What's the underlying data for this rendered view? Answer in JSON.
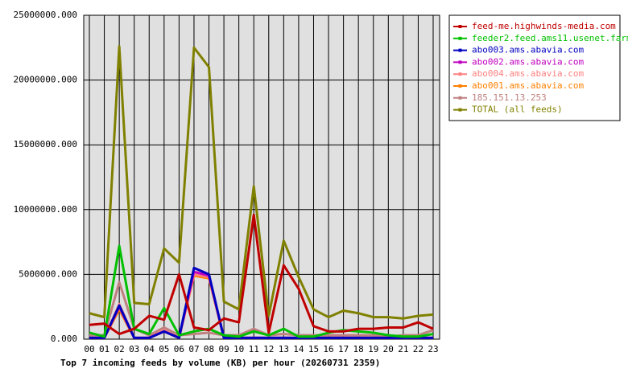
{
  "chart_data": {
    "type": "line",
    "title": "Top 7 incoming feeds by volume (KB) per hour (20260731 2359)",
    "categories": [
      "00",
      "01",
      "02",
      "03",
      "04",
      "05",
      "06",
      "07",
      "08",
      "09",
      "10",
      "11",
      "12",
      "13",
      "14",
      "15",
      "16",
      "17",
      "18",
      "19",
      "20",
      "21",
      "22",
      "23"
    ],
    "ylim": [
      0,
      25000000
    ],
    "yticks": [
      {
        "value": 0,
        "label": "0.000"
      },
      {
        "value": 5000000,
        "label": "5000000.000"
      },
      {
        "value": 10000000,
        "label": "10000000.000"
      },
      {
        "value": 15000000,
        "label": "15000000.000"
      },
      {
        "value": 20000000,
        "label": "20000000.000"
      },
      {
        "value": 25000000,
        "label": "25000000.000"
      }
    ],
    "grid": true,
    "legend": "right",
    "series": [
      {
        "name": "feed-me.highwinds-media.com",
        "color": "#c00000",
        "values": [
          1100000,
          1200000,
          400000,
          800000,
          1800000,
          1500000,
          5000000,
          900000,
          700000,
          1600000,
          1300000,
          9600000,
          500000,
          5700000,
          3900000,
          1000000,
          600000,
          600000,
          800000,
          800000,
          900000,
          900000,
          1300000,
          800000
        ]
      },
      {
        "name": "feeder2.feed.ams11.usenet.farm",
        "color": "#00c000",
        "values": [
          500000,
          200000,
          7200000,
          800000,
          400000,
          2400000,
          300000,
          600000,
          800000,
          300000,
          200000,
          600000,
          300000,
          800000,
          200000,
          200000,
          500000,
          700000,
          600000,
          500000,
          300000,
          200000,
          200000,
          400000
        ]
      },
      {
        "name": "abo003.ams.abavia.com",
        "color": "#0000c0",
        "values": [
          100000,
          100000,
          2600000,
          100000,
          100000,
          600000,
          100000,
          5500000,
          5000000,
          100000,
          100000,
          100000,
          100000,
          100000,
          100000,
          100000,
          100000,
          100000,
          100000,
          100000,
          100000,
          100000,
          100000,
          100000
        ]
      },
      {
        "name": "abo002.ams.abavia.com",
        "color": "#c000c0",
        "values": [
          100000,
          100000,
          2500000,
          100000,
          100000,
          600000,
          100000,
          5200000,
          4900000,
          100000,
          100000,
          100000,
          100000,
          100000,
          100000,
          100000,
          100000,
          100000,
          100000,
          100000,
          100000,
          100000,
          100000,
          100000
        ]
      },
      {
        "name": "abo004.ams.abavia.com",
        "color": "#ff8080",
        "values": [
          100000,
          100000,
          2700000,
          100000,
          100000,
          700000,
          100000,
          5000000,
          4800000,
          100000,
          100000,
          100000,
          100000,
          100000,
          100000,
          100000,
          100000,
          100000,
          100000,
          100000,
          100000,
          100000,
          100000,
          100000
        ]
      },
      {
        "name": "abo001.ams.abavia.com",
        "color": "#ff8000",
        "values": [
          100000,
          100000,
          2300000,
          100000,
          100000,
          600000,
          100000,
          4900000,
          4700000,
          100000,
          100000,
          100000,
          100000,
          100000,
          100000,
          100000,
          100000,
          100000,
          100000,
          100000,
          100000,
          100000,
          100000,
          100000
        ]
      },
      {
        "name": "185.151.13.253",
        "color": "#c08080",
        "values": [
          300000,
          300000,
          4400000,
          800000,
          300000,
          900000,
          300000,
          400000,
          500000,
          300000,
          300000,
          800000,
          300000,
          400000,
          300000,
          300000,
          300000,
          300000,
          300000,
          300000,
          200000,
          300000,
          300000,
          700000
        ]
      },
      {
        "name": "TOTAL (all feeds)",
        "color": "#808000",
        "values": [
          2000000,
          1700000,
          22600000,
          2800000,
          2700000,
          7000000,
          5900000,
          22500000,
          21000000,
          2900000,
          2300000,
          11800000,
          1800000,
          7600000,
          4800000,
          2300000,
          1700000,
          2200000,
          2000000,
          1700000,
          1700000,
          1600000,
          1800000,
          1900000
        ]
      }
    ]
  }
}
